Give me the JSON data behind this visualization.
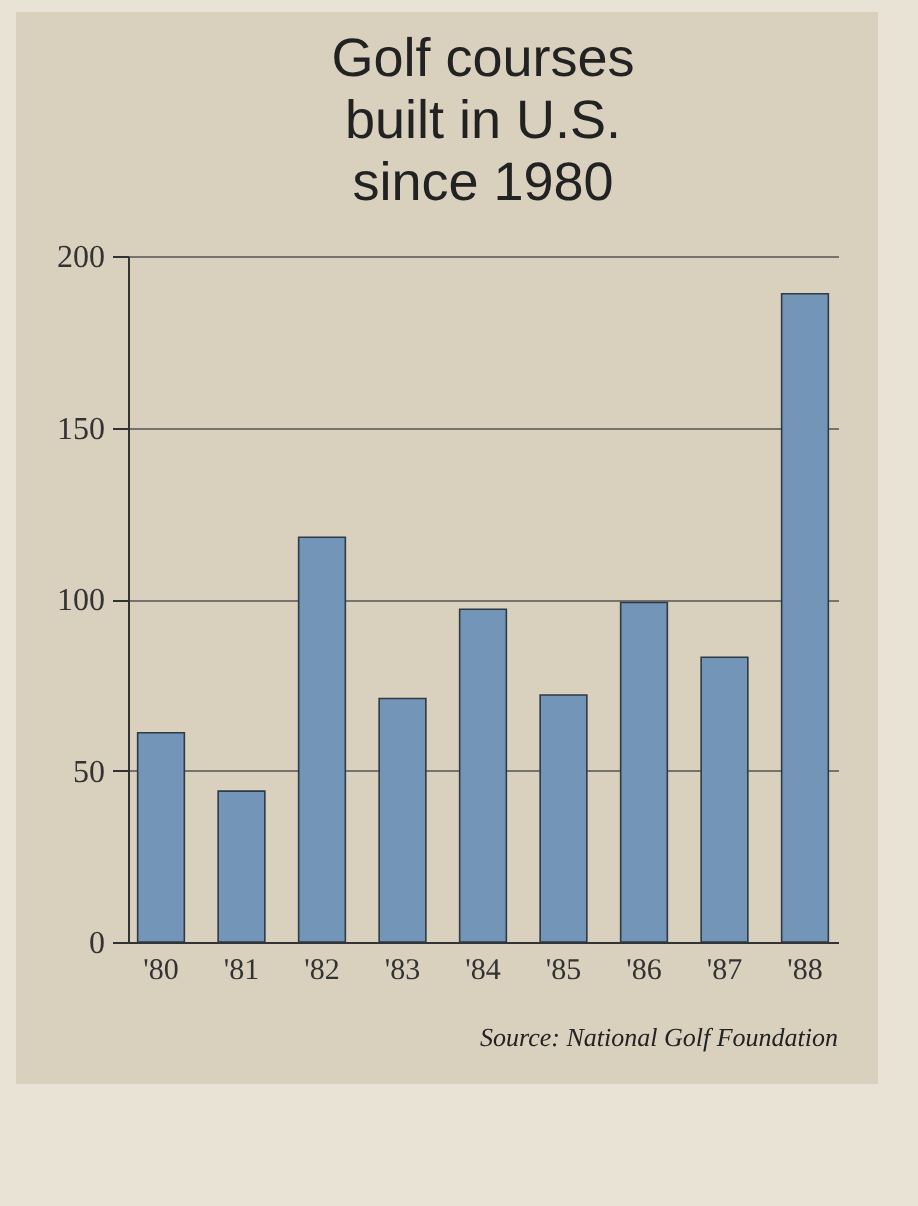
{
  "chart_data": {
    "type": "bar",
    "title": "Golf courses built in U.S. since 1980",
    "categories": [
      "'80",
      "'81",
      "'82",
      "'83",
      "'84",
      "'85",
      "'86",
      "'87",
      "'88"
    ],
    "values": [
      61,
      44,
      118,
      71,
      97,
      72,
      99,
      83,
      189
    ],
    "color": "#7295b8",
    "ylim": [
      0,
      200
    ],
    "yticks": [
      0,
      50,
      100,
      150,
      200
    ],
    "grid": "y",
    "annotations": [
      "Source: National Golf Foundation"
    ]
  }
}
